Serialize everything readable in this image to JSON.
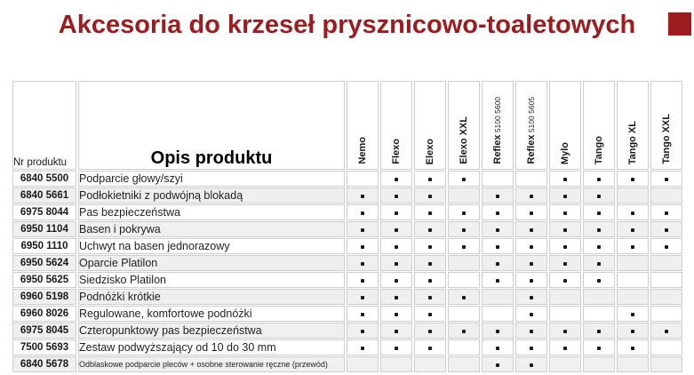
{
  "page": {
    "title": "Akcesoria do krzeseł prysznicowo-toaletowych",
    "accent_color": "#9E1B1E",
    "alt_row_color": "#EFEFEF",
    "grid_color": "#CFCDCD"
  },
  "table": {
    "header": {
      "product_number_label": "Nr produktu",
      "description_label": "Opis produktu",
      "models": [
        {
          "name": "Nemo",
          "sub": ""
        },
        {
          "name": "Flexo",
          "sub": ""
        },
        {
          "name": "Elexo",
          "sub": ""
        },
        {
          "name": "Elexo XXL",
          "sub": ""
        },
        {
          "name": "Reflex",
          "sub": "5100 5600"
        },
        {
          "name": "Reflex",
          "sub": "5100 5605"
        },
        {
          "name": "Mylo",
          "sub": ""
        },
        {
          "name": "Tango",
          "sub": ""
        },
        {
          "name": "Tango XL",
          "sub": ""
        },
        {
          "name": "Tango XXL",
          "sub": ""
        }
      ]
    },
    "bullet_char": "•",
    "rows": [
      {
        "nr": "6840 5500",
        "desc": "Podparcie głowy/szyi",
        "small": false,
        "marks": [
          0,
          1,
          1,
          1,
          0,
          0,
          1,
          1,
          1,
          1
        ]
      },
      {
        "nr": "6840 5661",
        "desc": "Podłokietniki z podwójną blokadą",
        "small": false,
        "marks": [
          1,
          1,
          1,
          0,
          1,
          1,
          1,
          1,
          0,
          0
        ]
      },
      {
        "nr": "6975 8044",
        "desc": "Pas bezpieczeństwa",
        "small": false,
        "marks": [
          1,
          1,
          1,
          1,
          1,
          1,
          1,
          1,
          1,
          1
        ]
      },
      {
        "nr": "6950 1104",
        "desc": "Basen i pokrywa",
        "small": false,
        "marks": [
          1,
          1,
          1,
          1,
          1,
          1,
          1,
          1,
          1,
          1
        ]
      },
      {
        "nr": "6950 1110",
        "desc": "Uchwyt na basen jednorazowy",
        "small": false,
        "marks": [
          1,
          1,
          1,
          1,
          1,
          1,
          1,
          1,
          1,
          1
        ]
      },
      {
        "nr": "6950 5624",
        "desc": "Oparcie Platilon",
        "small": false,
        "marks": [
          1,
          1,
          1,
          0,
          1,
          1,
          1,
          1,
          0,
          0
        ]
      },
      {
        "nr": "6950 5625",
        "desc": "Siedzisko Platilon",
        "small": false,
        "marks": [
          1,
          1,
          1,
          0,
          1,
          1,
          1,
          1,
          0,
          0
        ]
      },
      {
        "nr": "6960 5198",
        "desc": "Podnóżki krótkie",
        "small": false,
        "marks": [
          1,
          1,
          1,
          1,
          0,
          1,
          0,
          0,
          0,
          0
        ]
      },
      {
        "nr": "6960 8026",
        "desc": "Regulowane, komfortowe podnóżki",
        "small": false,
        "marks": [
          1,
          1,
          1,
          0,
          0,
          1,
          0,
          0,
          1,
          0
        ]
      },
      {
        "nr": "6975 8045",
        "desc": "Czteropunktowy pas bezpieczeństwa",
        "small": false,
        "marks": [
          1,
          1,
          1,
          1,
          1,
          1,
          1,
          1,
          1,
          1
        ]
      },
      {
        "nr": "7500 5693",
        "desc": "Zestaw podwyższający od 10 do 30 mm",
        "small": false,
        "marks": [
          1,
          1,
          1,
          0,
          1,
          1,
          1,
          1,
          1,
          0
        ]
      },
      {
        "nr": "6840 5678",
        "desc": "Odblaskowe podparcie pleców + osobne sterowanie ręczne (przewód)",
        "small": true,
        "marks": [
          0,
          0,
          0,
          0,
          1,
          1,
          0,
          0,
          0,
          0
        ]
      }
    ]
  }
}
